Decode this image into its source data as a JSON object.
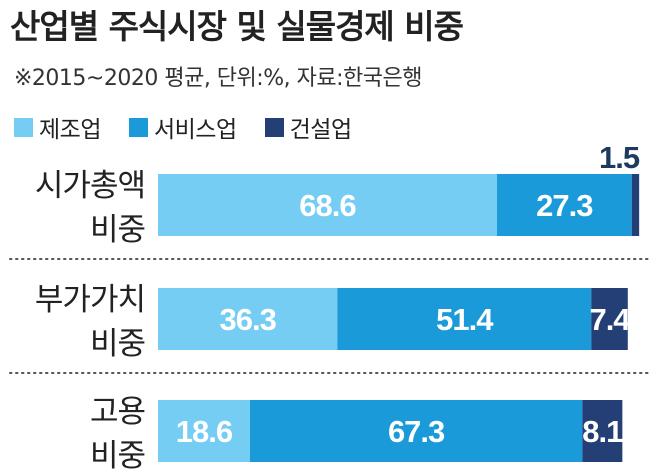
{
  "title": "산업별 주식시장 및 실물경제 비중",
  "subtitle": "※2015~2020 평균, 단위:%, 자료:한국은행",
  "colors": {
    "manufacturing": "#76cdf4",
    "services": "#1a9ad9",
    "construction": "#243f75",
    "label_light": "#ffffff",
    "label_dark": "#1f3a5f",
    "divider": "#555555"
  },
  "chart_data": {
    "type": "bar",
    "orientation": "horizontal",
    "stacked": true,
    "categories": [
      [
        "시가총액",
        "비중"
      ],
      [
        "부가가치",
        "비중"
      ],
      [
        "고용",
        "비중"
      ]
    ],
    "series": [
      {
        "name": "제조업",
        "color": "#76cdf4",
        "values": [
          68.6,
          36.3,
          18.6
        ]
      },
      {
        "name": "서비스업",
        "color": "#1a9ad9",
        "values": [
          27.3,
          51.4,
          67.3
        ]
      },
      {
        "name": "건설업",
        "color": "#243f75",
        "values": [
          1.5,
          7.4,
          8.1
        ]
      }
    ],
    "xlim": [
      0,
      100
    ],
    "legend": "top-left",
    "grid": false,
    "data_labels": true
  }
}
